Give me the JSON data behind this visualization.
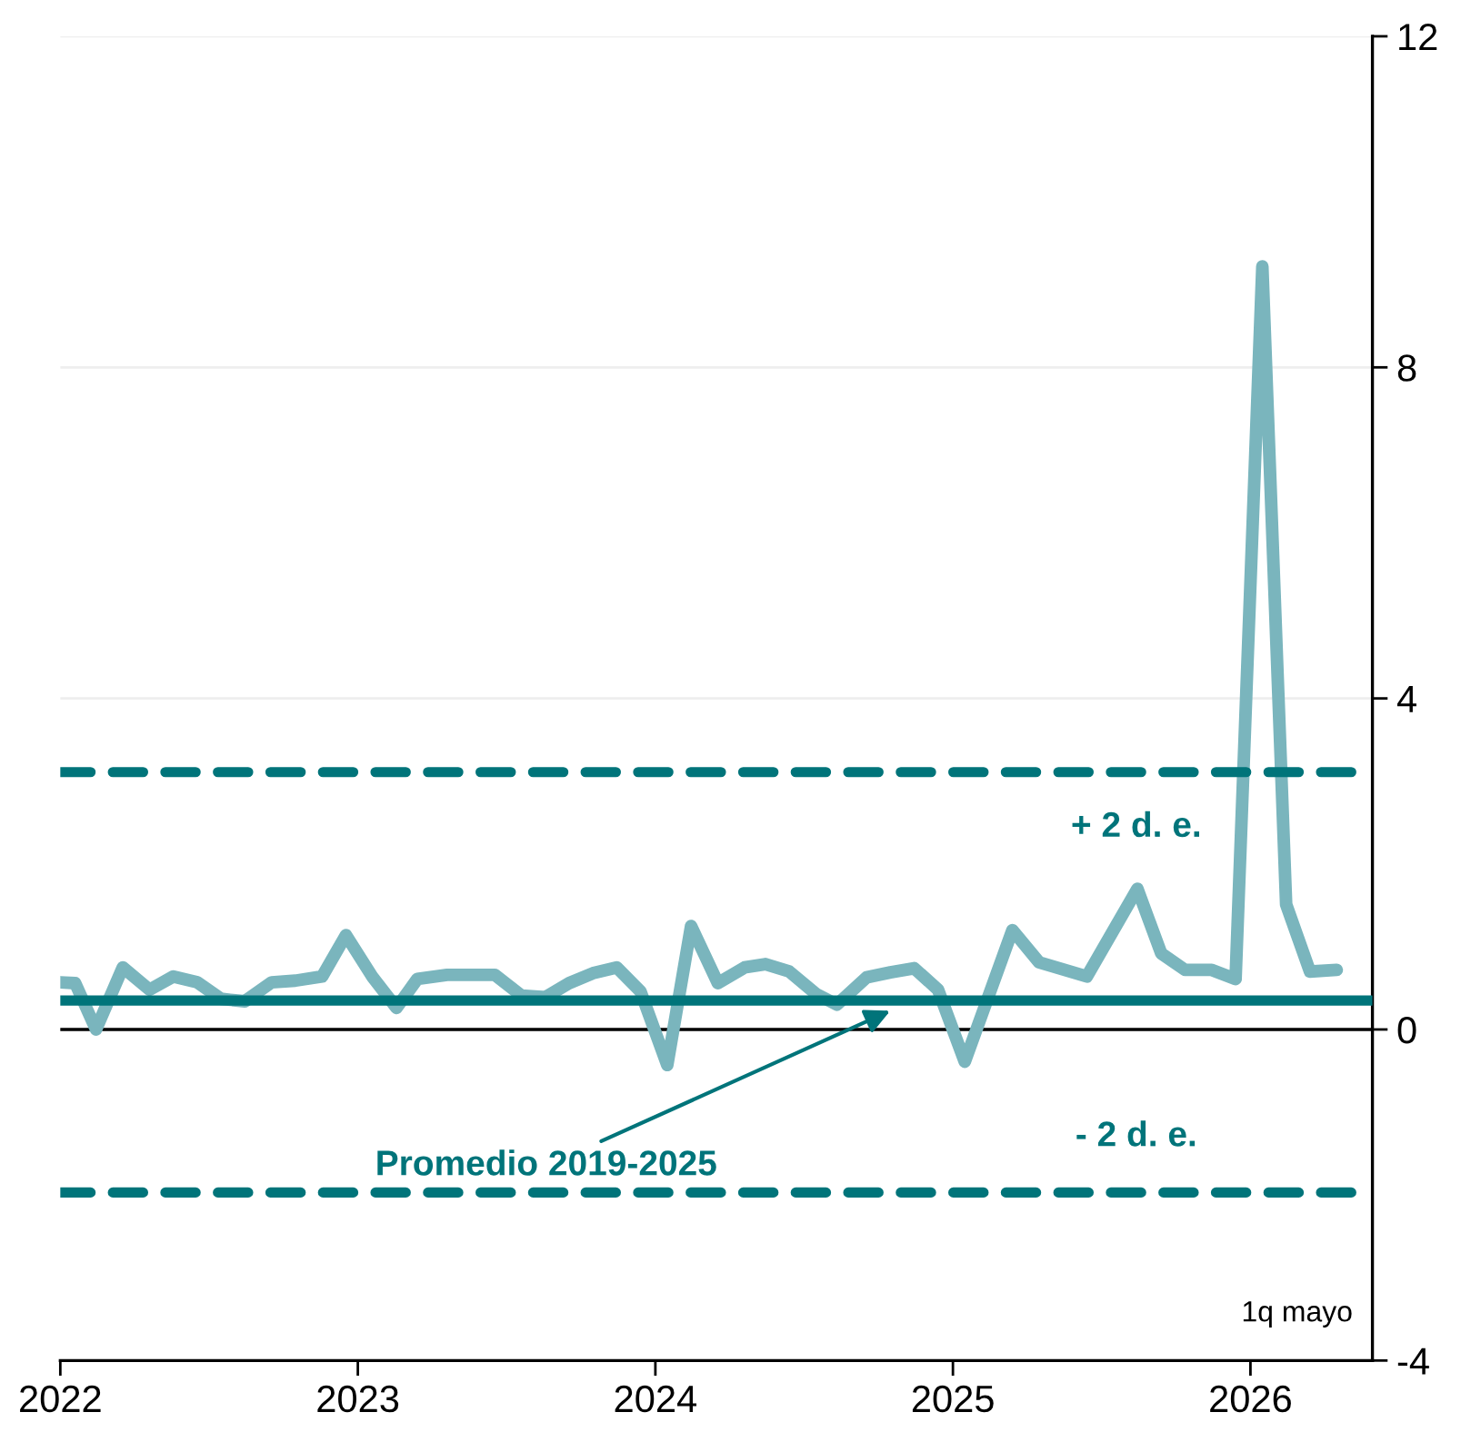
{
  "chart_data": {
    "type": "line",
    "x": [
      2022.0,
      2022.05,
      2022.12,
      2022.21,
      2022.3,
      2022.38,
      2022.46,
      2022.54,
      2022.62,
      2022.71,
      2022.79,
      2022.88,
      2022.96,
      2023.05,
      2023.13,
      2023.2,
      2023.3,
      2023.46,
      2023.55,
      2023.63,
      2023.71,
      2023.79,
      2023.87,
      2023.95,
      2024.04,
      2024.12,
      2024.21,
      2024.3,
      2024.37,
      2024.45,
      2024.54,
      2024.61,
      2024.71,
      2024.79,
      2024.87,
      2024.95,
      2025.04,
      2025.2,
      2025.29,
      2025.45,
      2025.62,
      2025.7,
      2025.78,
      2025.87,
      2025.95,
      2026.04,
      2026.12,
      2026.2,
      2026.29
    ],
    "series": [
      {
        "color": "#7ab5bd",
        "values": [
          0.57,
          0.56,
          0.0,
          0.75,
          0.48,
          0.64,
          0.57,
          0.37,
          0.34,
          0.57,
          0.59,
          0.64,
          1.14,
          0.63,
          0.26,
          0.61,
          0.66,
          0.66,
          0.41,
          0.39,
          0.56,
          0.68,
          0.75,
          0.46,
          -0.43,
          1.25,
          0.56,
          0.75,
          0.79,
          0.7,
          0.43,
          0.3,
          0.63,
          0.69,
          0.74,
          0.48,
          -0.39,
          1.2,
          0.81,
          0.64,
          1.7,
          0.92,
          0.72,
          0.72,
          0.61,
          9.22,
          1.51,
          0.7,
          0.72
        ]
      }
    ],
    "xlim": [
      2022,
      2026.41
    ],
    "xticks": [
      2022,
      2023,
      2024,
      2025,
      2026
    ],
    "ylim": [
      -4,
      12
    ],
    "yticks": [
      -4,
      0,
      4,
      8,
      12
    ],
    "grid": "y",
    "line_style": "solid",
    "marker": "none",
    "ref_lines": [
      {
        "axis": "y",
        "value": 0,
        "color": "#000000",
        "line_style": "solid"
      },
      {
        "axis": "y",
        "value": 0.35,
        "label": "Promedio 2019-2025",
        "color": "#00747a",
        "line_style": "solid"
      },
      {
        "axis": "y",
        "value": 3.11,
        "label": "+ 2 d. e.",
        "color": "#00747a",
        "line_style": "dashed"
      },
      {
        "axis": "y",
        "value": -1.97,
        "label": "- 2 d. e.",
        "color": "#00747a",
        "line_style": "dashed"
      }
    ],
    "annotations": [
      "1q mayo"
    ]
  }
}
